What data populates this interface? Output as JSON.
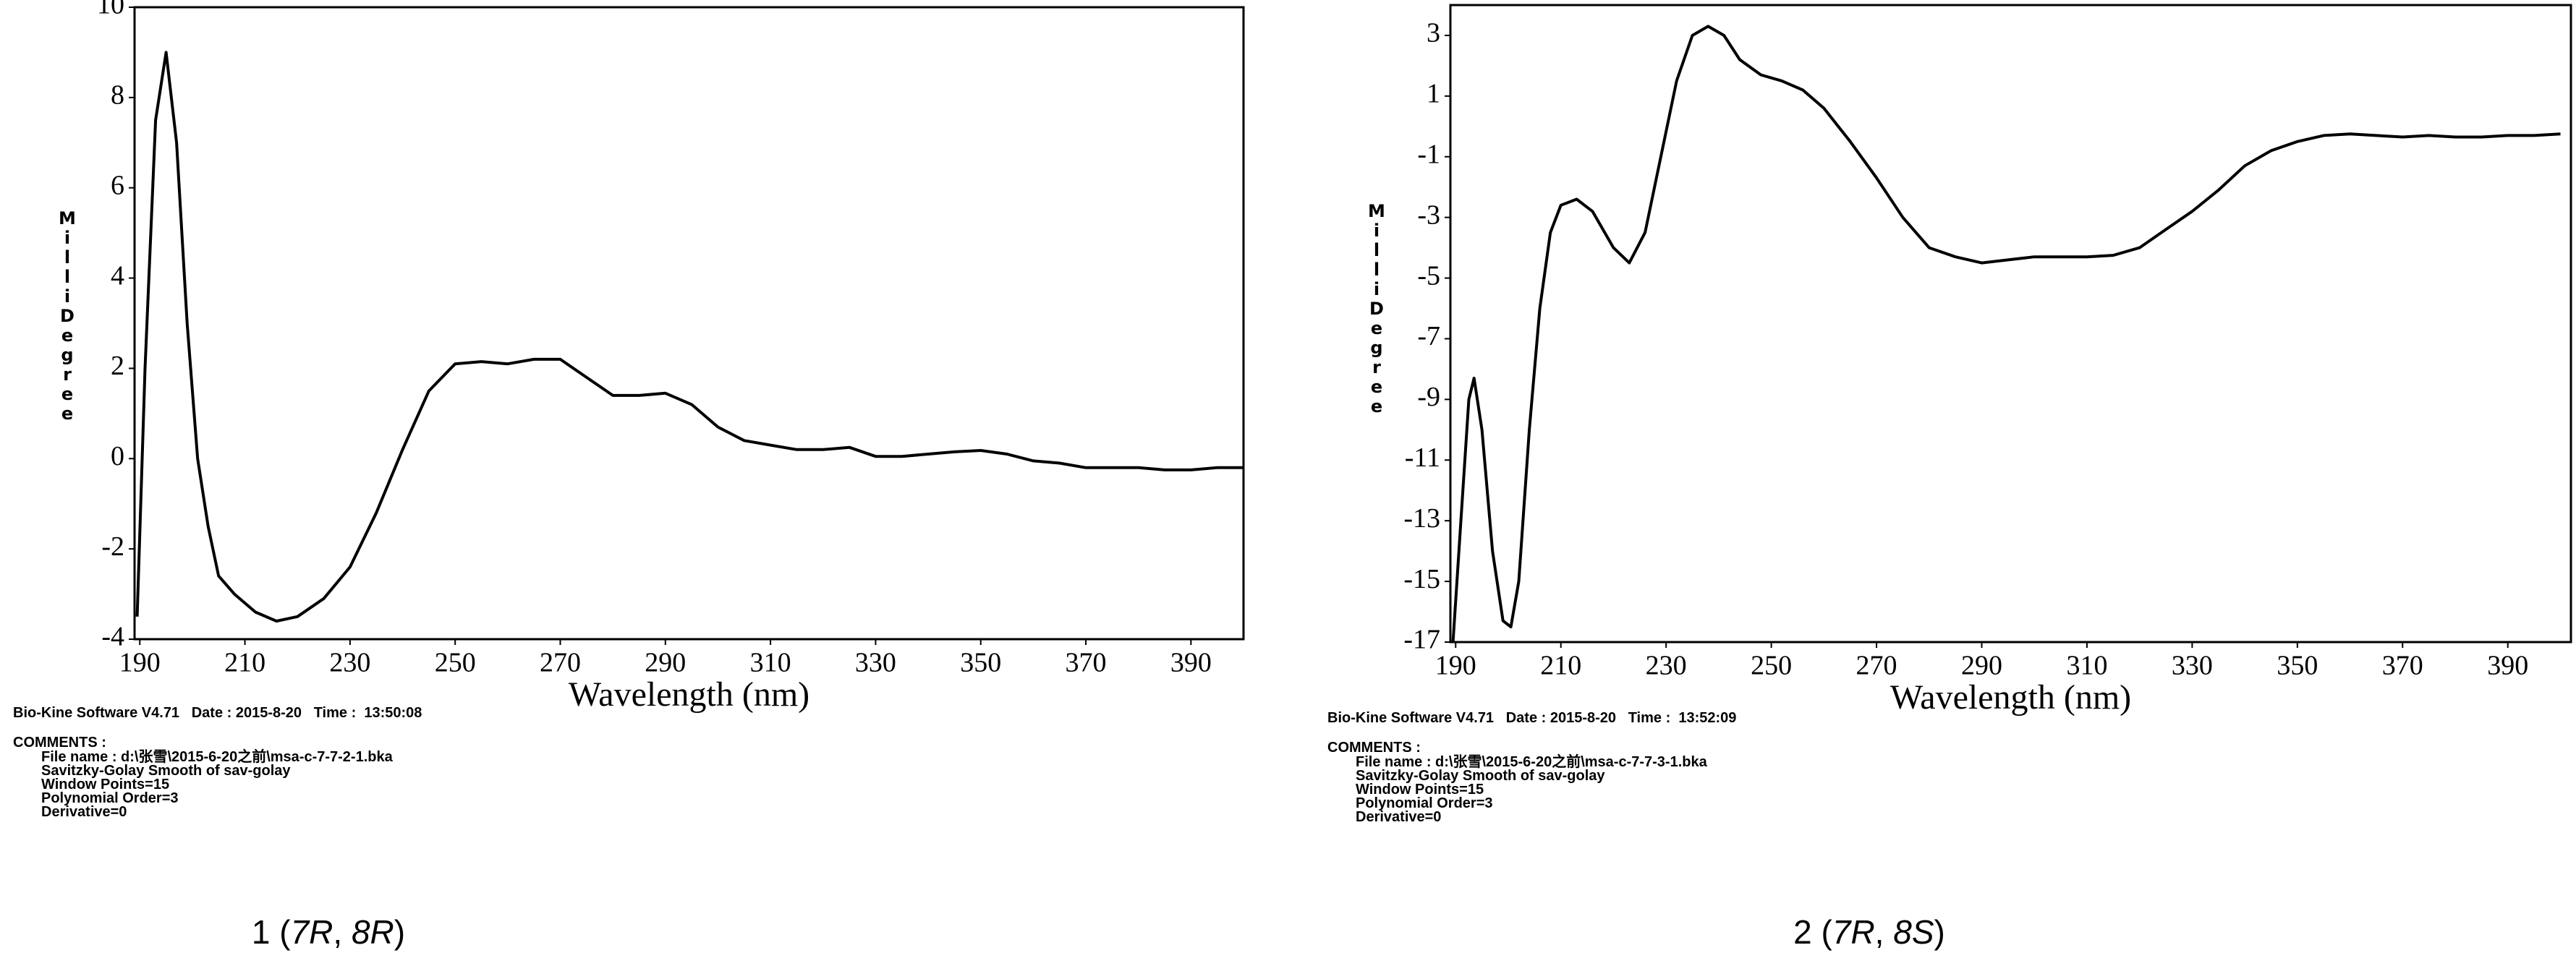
{
  "chart_data": [
    {
      "type": "line",
      "xlabel": "Wavelength (nm)",
      "ylabel": "MilliDegree",
      "color": "#000000",
      "xlim": [
        189,
        400
      ],
      "xticks": [
        190,
        210,
        230,
        250,
        270,
        290,
        310,
        330,
        350,
        370,
        390
      ],
      "ylim": [
        -4,
        10
      ],
      "yticks": [
        -4,
        -2,
        0,
        2,
        4,
        6,
        8,
        10
      ],
      "x": [
        189.5,
        191,
        193,
        195,
        197,
        199,
        201,
        203,
        205,
        208,
        212,
        216,
        220,
        225,
        230,
        235,
        240,
        245,
        250,
        255,
        260,
        265,
        270,
        275,
        280,
        285,
        290,
        295,
        300,
        305,
        310,
        315,
        320,
        325,
        330,
        335,
        340,
        345,
        350,
        355,
        360,
        365,
        370,
        375,
        380,
        385,
        390,
        395,
        400
      ],
      "values": [
        -3.5,
        2,
        7.5,
        9,
        7,
        3,
        0,
        -1.5,
        -2.6,
        -3.0,
        -3.4,
        -3.6,
        -3.5,
        -3.1,
        -2.4,
        -1.2,
        0.2,
        1.5,
        2.1,
        2.15,
        2.1,
        2.2,
        2.2,
        1.8,
        1.4,
        1.4,
        1.45,
        1.2,
        0.7,
        0.4,
        0.3,
        0.2,
        0.2,
        0.25,
        0.05,
        0.05,
        0.1,
        0.15,
        0.18,
        0.1,
        -0.05,
        -0.1,
        -0.2,
        -0.2,
        -0.2,
        -0.25,
        -0.25,
        -0.2,
        -0.2
      ],
      "footer": {
        "software": "Bio-Kine Software V4.71   Date : 2015-8-20   Time :  13:50:08",
        "comments_title": "COMMENTS :",
        "comments": [
          "File name : d:\\张雪\\2015-6-20之前\\msa-c-7-7-2-1.bka",
          "Savitzky-Golay Smooth of sav-golay",
          "Window Points=15",
          "Polynomial Order=3",
          "Derivative=0"
        ]
      },
      "caption": [
        "1 (",
        "7R",
        ", ",
        "8R",
        ")"
      ]
    },
    {
      "type": "line",
      "xlabel": "Wavelength (nm)",
      "ylabel": "MilliDegree",
      "color": "#000000",
      "xlim": [
        189,
        402
      ],
      "xticks": [
        190,
        210,
        230,
        250,
        270,
        290,
        310,
        330,
        350,
        370,
        390
      ],
      "ylim": [
        -17,
        4
      ],
      "yticks": [
        -17,
        -15,
        -13,
        -11,
        -9,
        -7,
        -5,
        -3,
        -1,
        1,
        3
      ],
      "x": [
        189.5,
        191,
        192.5,
        193.5,
        195,
        197,
        199,
        200.5,
        202,
        204,
        206,
        208,
        210,
        213,
        216,
        220,
        223,
        226,
        229,
        232,
        235,
        238,
        241,
        244,
        248,
        252,
        256,
        260,
        265,
        270,
        275,
        280,
        285,
        290,
        295,
        300,
        305,
        310,
        315,
        320,
        325,
        330,
        335,
        340,
        345,
        350,
        355,
        360,
        365,
        370,
        375,
        380,
        385,
        390,
        395,
        400
      ],
      "values": [
        -17,
        -13,
        -9,
        -8.3,
        -10,
        -14,
        -16.3,
        -16.5,
        -15,
        -10,
        -6,
        -3.5,
        -2.6,
        -2.4,
        -2.8,
        -4,
        -4.5,
        -3.5,
        -1,
        1.5,
        3,
        3.3,
        3,
        2.2,
        1.7,
        1.5,
        1.2,
        0.6,
        -0.5,
        -1.7,
        -3,
        -4,
        -4.3,
        -4.5,
        -4.4,
        -4.3,
        -4.3,
        -4.3,
        -4.25,
        -4,
        -3.4,
        -2.8,
        -2.1,
        -1.3,
        -0.8,
        -0.5,
        -0.3,
        -0.25,
        -0.3,
        -0.35,
        -0.3,
        -0.35,
        -0.35,
        -0.3,
        -0.3,
        -0.25
      ],
      "footer": {
        "software": "Bio-Kine Software V4.71   Date : 2015-8-20   Time :  13:52:09",
        "comments_title": "COMMENTS :",
        "comments": [
          "File name : d:\\张雪\\2015-6-20之前\\msa-c-7-7-3-1.bka",
          "Savitzky-Golay Smooth of sav-golay",
          "Window Points=15",
          "Polynomial Order=3",
          "Derivative=0"
        ]
      },
      "caption": [
        "2 (",
        "7R",
        ", ",
        "8S",
        ")"
      ]
    }
  ]
}
